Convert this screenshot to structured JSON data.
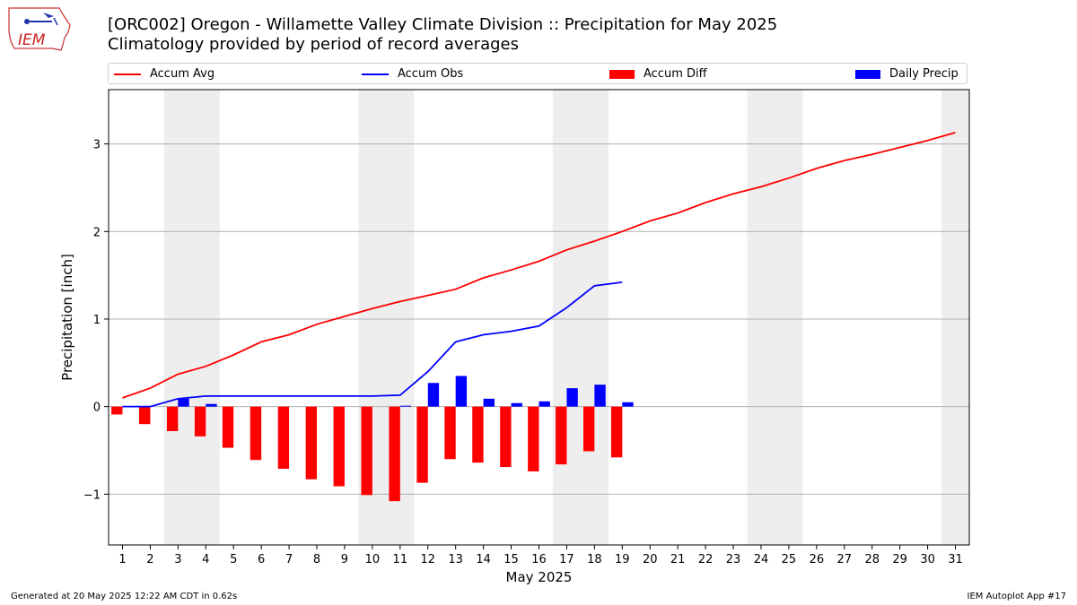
{
  "header": {
    "title_line1": "[ORC002] Oregon - Willamette Valley Climate Division :: Precipitation for May 2025",
    "title_line2": "Climatology provided by period of record averages"
  },
  "logo": {
    "text": "IEM",
    "name": "iem-logo"
  },
  "legend": [
    {
      "label": "Accum Avg",
      "kind": "line",
      "color": "#ff0000"
    },
    {
      "label": "Accum Obs",
      "kind": "line",
      "color": "#0000ff"
    },
    {
      "label": "Accum Diff",
      "kind": "bar",
      "color": "#ff0000"
    },
    {
      "label": "Daily Precip",
      "kind": "bar",
      "color": "#0000ff"
    }
  ],
  "footer": {
    "left": "Generated at 20 May 2025 12:22 AM CDT in 0.62s",
    "right": "IEM Autoplot App #17"
  },
  "chart_data": {
    "type": "bar",
    "title": "[ORC002] Oregon - Willamette Valley Climate Division :: Precipitation for May 2025",
    "subtitle": "Climatology provided by period of record averages",
    "xlabel": "May 2025",
    "ylabel": "Precipitation [inch]",
    "xlim": [
      0.5,
      31.5
    ],
    "ylim": [
      -1.58,
      3.62
    ],
    "yticks": [
      -1,
      0,
      1,
      2,
      3
    ],
    "ytick_labels": [
      "−1",
      "0",
      "1",
      "2",
      "3"
    ],
    "grid": "y",
    "legend_position": "top",
    "weekend_shading": [
      [
        2.5,
        4.5
      ],
      [
        9.5,
        11.5
      ],
      [
        16.5,
        18.5
      ],
      [
        23.5,
        25.5
      ],
      [
        30.5,
        31.5
      ]
    ],
    "days": [
      1,
      2,
      3,
      4,
      5,
      6,
      7,
      8,
      9,
      10,
      11,
      12,
      13,
      14,
      15,
      16,
      17,
      18,
      19,
      20,
      21,
      22,
      23,
      24,
      25,
      26,
      27,
      28,
      29,
      30,
      31
    ],
    "series": [
      {
        "name": "Accum Avg",
        "kind": "line",
        "color": "#ff0000",
        "x": [
          1,
          2,
          3,
          4,
          5,
          6,
          7,
          8,
          9,
          10,
          11,
          12,
          13,
          14,
          15,
          16,
          17,
          18,
          19,
          20,
          21,
          22,
          23,
          24,
          25,
          26,
          27,
          28,
          29,
          30,
          31
        ],
        "values": [
          0.1,
          0.21,
          0.37,
          0.46,
          0.59,
          0.74,
          0.82,
          0.94,
          1.03,
          1.12,
          1.2,
          1.27,
          1.34,
          1.47,
          1.56,
          1.66,
          1.79,
          1.89,
          2.0,
          2.12,
          2.21,
          2.33,
          2.43,
          2.51,
          2.61,
          2.72,
          2.81,
          2.88,
          2.96,
          3.04,
          3.13
        ]
      },
      {
        "name": "Accum Obs",
        "kind": "line",
        "color": "#0000ff",
        "x": [
          1,
          2,
          3,
          4,
          5,
          6,
          7,
          8,
          9,
          10,
          11,
          12,
          13,
          14,
          15,
          16,
          17,
          18,
          19
        ],
        "values": [
          0.0,
          0.0,
          0.09,
          0.12,
          0.12,
          0.12,
          0.12,
          0.12,
          0.12,
          0.12,
          0.13,
          0.4,
          0.74,
          0.82,
          0.86,
          0.92,
          1.13,
          1.38,
          1.42
        ]
      },
      {
        "name": "Accum Diff",
        "kind": "bar",
        "color": "#ff0000",
        "x": [
          1,
          2,
          3,
          4,
          5,
          6,
          7,
          8,
          9,
          10,
          11,
          12,
          13,
          14,
          15,
          16,
          17,
          18,
          19
        ],
        "values": [
          -0.09,
          -0.2,
          -0.28,
          -0.34,
          -0.47,
          -0.61,
          -0.71,
          -0.83,
          -0.91,
          -1.01,
          -1.08,
          -0.87,
          -0.6,
          -0.64,
          -0.69,
          -0.74,
          -0.66,
          -0.51,
          -0.58
        ]
      },
      {
        "name": "Daily Precip",
        "kind": "bar",
        "color": "#0000ff",
        "x": [
          1,
          2,
          3,
          4,
          5,
          6,
          7,
          8,
          9,
          10,
          11,
          12,
          13,
          14,
          15,
          16,
          17,
          18,
          19
        ],
        "values": [
          0.0,
          0.0,
          0.09,
          0.03,
          0.0,
          0.0,
          0.0,
          0.0,
          0.0,
          0.0,
          0.01,
          0.27,
          0.35,
          0.09,
          0.04,
          0.06,
          0.21,
          0.25,
          0.05
        ]
      }
    ]
  }
}
